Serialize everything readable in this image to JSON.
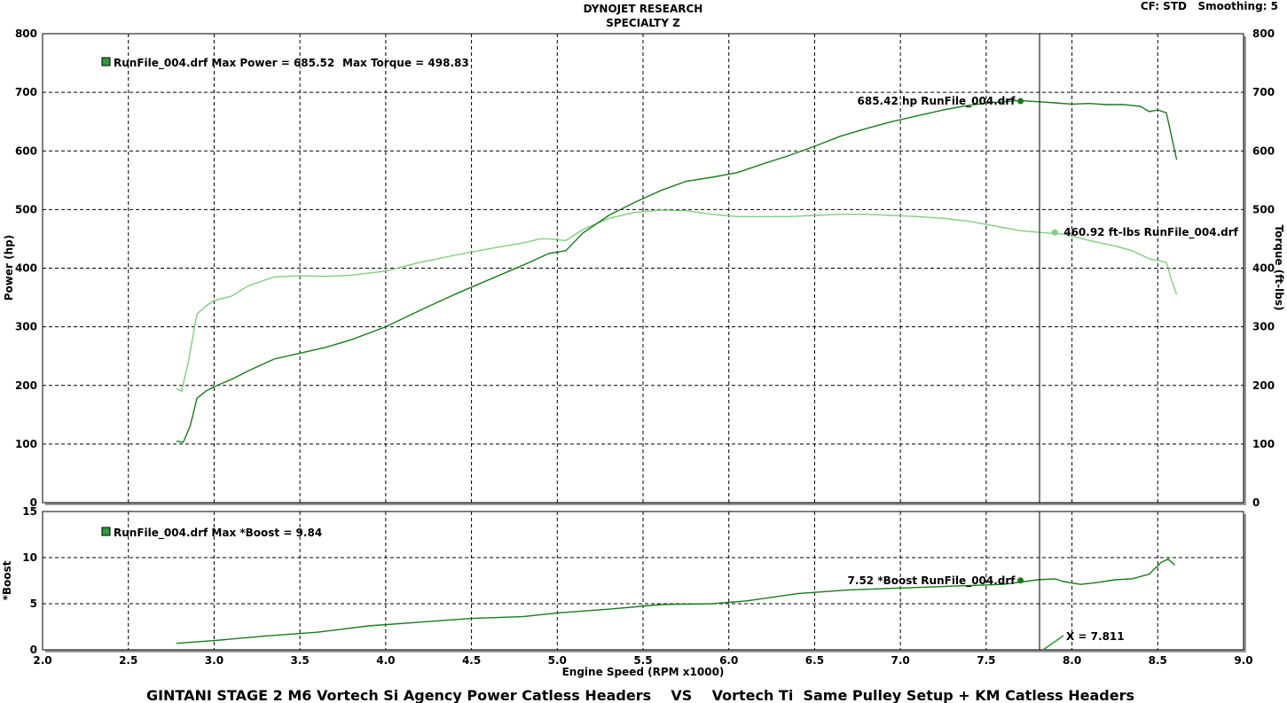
{
  "header": {
    "title_line1": "DYNOJET RESEARCH",
    "title_line2": "SPECIALTY Z",
    "settings": "CF: STD   Smoothing: 5"
  },
  "footer": {
    "caption": "GINTANI STAGE 2 M6 Vortech Si Agency Power Catless Headers    VS    Vortech Ti  Same Pulley Setup + KM Catless Headers"
  },
  "colors": {
    "power": "#1a7a1a",
    "torque": "#7ecf7e",
    "boost": "#1a7a1a",
    "grid": "#000000",
    "cursor": "#000000"
  },
  "chart_data": [
    {
      "type": "line",
      "panel": "power-torque",
      "xlabel": "Engine Speed (RPM x1000)",
      "ylabel_left": "Power (hp)",
      "ylabel_right": "Torque (ft-lbs)",
      "xlim": [
        2.0,
        9.0
      ],
      "ylim_left": [
        0,
        800
      ],
      "ylim_right": [
        0,
        800
      ],
      "x_ticks": [
        "2.0",
        "2.5",
        "3.0",
        "3.5",
        "4.0",
        "4.5",
        "5.0",
        "5.5",
        "6.0",
        "6.5",
        "7.0",
        "7.5",
        "8.0",
        "8.5",
        "9.0"
      ],
      "y_ticks": [
        "0",
        "100",
        "200",
        "300",
        "400",
        "500",
        "600",
        "700",
        "800"
      ],
      "grid": true,
      "legend": {
        "text": "RunFile_004.drf Max Power = 685.52",
        "extra": "Max Torque = 498.83",
        "placement": "top-left"
      },
      "cursor_x": 7.811,
      "annotations": [
        {
          "text": "685.42 hp RunFile_004.drf",
          "x": 7.7,
          "y": 685
        },
        {
          "text": "460.92 ft-lbs RunFile_004.drf",
          "x": 7.9,
          "y": 461
        }
      ],
      "series": [
        {
          "name": "Power",
          "axis": "left",
          "x": [
            2.78,
            2.82,
            2.86,
            2.9,
            2.95,
            3.0,
            3.1,
            3.2,
            3.35,
            3.5,
            3.65,
            3.8,
            4.0,
            4.2,
            4.4,
            4.6,
            4.8,
            4.95,
            5.05,
            5.15,
            5.3,
            5.45,
            5.6,
            5.75,
            5.9,
            6.05,
            6.2,
            6.35,
            6.5,
            6.65,
            6.8,
            6.95,
            7.1,
            7.25,
            7.4,
            7.55,
            7.7,
            7.8,
            7.9,
            8.0,
            8.1,
            8.2,
            8.3,
            8.4,
            8.45,
            8.5,
            8.55,
            8.58,
            8.61
          ],
          "y": [
            105,
            103,
            130,
            178,
            190,
            198,
            210,
            225,
            245,
            255,
            265,
            278,
            300,
            328,
            355,
            380,
            405,
            425,
            430,
            460,
            490,
            512,
            532,
            548,
            555,
            563,
            578,
            592,
            608,
            625,
            638,
            650,
            660,
            670,
            678,
            683,
            686,
            684,
            682,
            680,
            681,
            679,
            679,
            676,
            667,
            670,
            665,
            625,
            585
          ]
        },
        {
          "name": "Torque",
          "axis": "right",
          "x": [
            2.78,
            2.81,
            2.85,
            2.9,
            2.95,
            3.0,
            3.1,
            3.2,
            3.35,
            3.5,
            3.65,
            3.8,
            4.0,
            4.2,
            4.4,
            4.6,
            4.8,
            4.9,
            4.95,
            5.05,
            5.15,
            5.3,
            5.45,
            5.6,
            5.75,
            5.9,
            6.05,
            6.2,
            6.35,
            6.5,
            6.65,
            6.8,
            6.95,
            7.1,
            7.25,
            7.4,
            7.55,
            7.7,
            7.85,
            7.95,
            8.05,
            8.15,
            8.25,
            8.35,
            8.45,
            8.5,
            8.55,
            8.58,
            8.61
          ],
          "y": [
            195,
            190,
            240,
            322,
            335,
            345,
            352,
            370,
            385,
            387,
            386,
            388,
            395,
            410,
            422,
            433,
            443,
            450,
            450,
            447,
            466,
            485,
            495,
            499,
            498,
            492,
            488,
            488,
            488,
            490,
            492,
            492,
            490,
            488,
            485,
            480,
            472,
            464,
            460,
            458,
            451,
            444,
            438,
            430,
            416,
            413,
            410,
            380,
            355
          ]
        }
      ]
    },
    {
      "type": "line",
      "panel": "boost",
      "xlabel": "Engine Speed (RPM x1000)",
      "ylabel": "*Boost",
      "xlim": [
        2.0,
        9.0
      ],
      "ylim": [
        0,
        15
      ],
      "x_ticks": [
        "2.0",
        "2.5",
        "3.0",
        "3.5",
        "4.0",
        "4.5",
        "5.0",
        "5.5",
        "6.0",
        "6.5",
        "7.0",
        "7.5",
        "8.0",
        "8.5",
        "9.0"
      ],
      "y_ticks": [
        "0",
        "5",
        "10",
        "15"
      ],
      "grid": true,
      "legend": {
        "text": "RunFile_004.drf Max *Boost = 9.84",
        "placement": "top-left"
      },
      "cursor_x": 7.811,
      "cursor_label": "X = 7.811",
      "annotations": [
        {
          "text": "7.52 *Boost RunFile_004.drf",
          "x": 7.7,
          "y": 7.52
        }
      ],
      "series": [
        {
          "name": "*Boost",
          "x": [
            2.78,
            3.0,
            3.3,
            3.6,
            3.9,
            4.2,
            4.5,
            4.8,
            5.0,
            5.3,
            5.6,
            5.9,
            6.1,
            6.4,
            6.7,
            7.0,
            7.3,
            7.6,
            7.8,
            7.9,
            7.95,
            8.05,
            8.15,
            8.25,
            8.35,
            8.45,
            8.52,
            8.56,
            8.6
          ],
          "y": [
            0.7,
            1.0,
            1.5,
            1.9,
            2.6,
            3.0,
            3.4,
            3.6,
            4.0,
            4.4,
            4.9,
            5.0,
            5.3,
            6.1,
            6.5,
            6.7,
            6.9,
            7.1,
            7.6,
            7.7,
            7.4,
            7.1,
            7.3,
            7.6,
            7.7,
            8.2,
            9.5,
            9.84,
            9.2
          ]
        }
      ]
    }
  ]
}
